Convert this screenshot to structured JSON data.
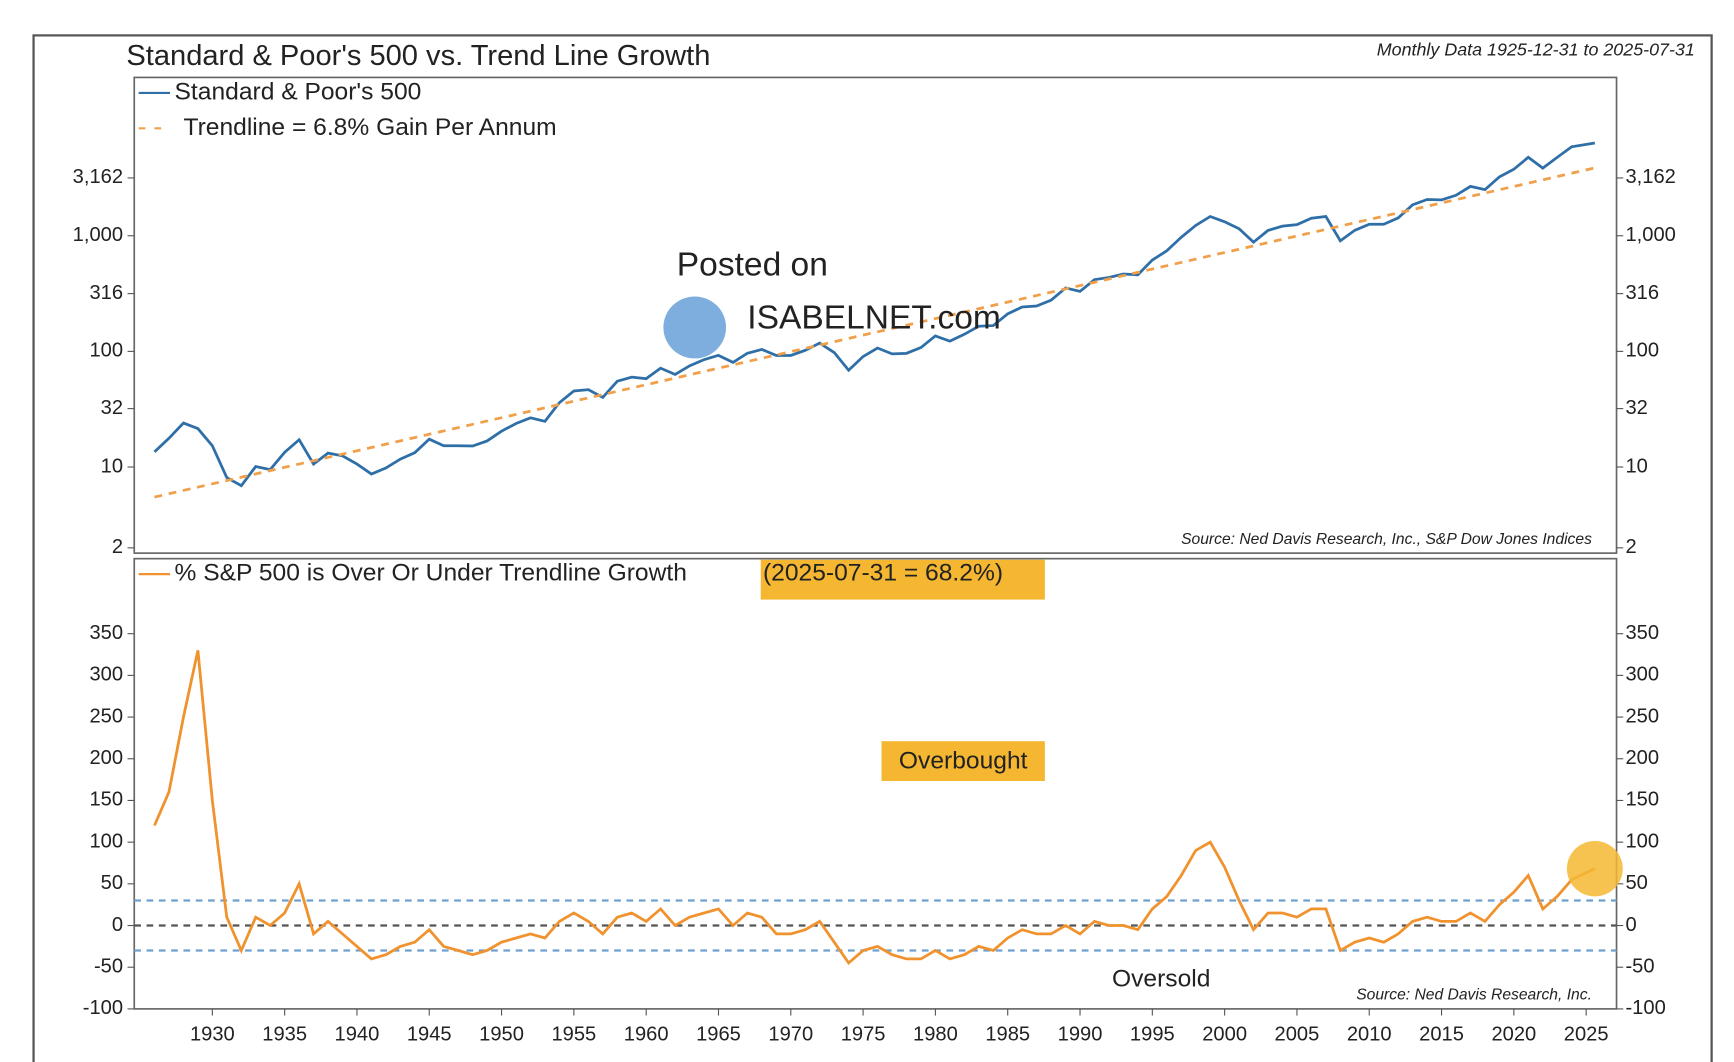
{
  "chart_data": [
    {
      "type": "line",
      "title": "Standard & Poor's 500 vs. Trend Line Growth",
      "subtitle": "Monthly Data 1925-12-31 to 2025-07-31",
      "log_scale": true,
      "xlim": [
        1924.6,
        2027.1
      ],
      "ylim": [
        1.8,
        23400
      ],
      "yticks": [
        2,
        10,
        32,
        100,
        316,
        {
          "value": 1000,
          "label": "1,000"
        },
        {
          "value": 3162,
          "label": "3,162"
        }
      ],
      "source": "Source: Ned Davis Research, Inc., S&P Dow Jones Indices",
      "watermark": [
        "Posted on",
        "ISABELNET.com"
      ],
      "series": [
        {
          "name": "Standard & Poor's 500",
          "color": "#2f6fa8",
          "style": "solid",
          "x": [
            1926,
            1927,
            1928,
            1929,
            1930,
            1931,
            1932,
            1933,
            1934,
            1935,
            1936,
            1937,
            1938,
            1939,
            1940,
            1941,
            1942,
            1943,
            1944,
            1945,
            1946,
            1947,
            1948,
            1949,
            1950,
            1951,
            1952,
            1953,
            1954,
            1955,
            1956,
            1957,
            1958,
            1959,
            1960,
            1961,
            1962,
            1963,
            1964,
            1965,
            1966,
            1967,
            1968,
            1969,
            1970,
            1971,
            1972,
            1973,
            1974,
            1975,
            1976,
            1977,
            1978,
            1979,
            1980,
            1981,
            1982,
            1983,
            1984,
            1985,
            1986,
            1987,
            1988,
            1989,
            1990,
            1991,
            1992,
            1993,
            1994,
            1995,
            1996,
            1997,
            1998,
            1999,
            2000,
            2001,
            2002,
            2003,
            2004,
            2005,
            2006,
            2007,
            2008,
            2009,
            2010,
            2011,
            2012,
            2013,
            2014,
            2015,
            2016,
            2017,
            2018,
            2019,
            2020,
            2021,
            2022,
            2023,
            2024,
            2025.6
          ],
          "values": [
            13.5,
            17.7,
            24,
            21.5,
            15.3,
            8.1,
            6.9,
            10.1,
            9.5,
            13.4,
            17.2,
            10.6,
            13.2,
            12.5,
            10.6,
            8.7,
            9.8,
            11.7,
            13.3,
            17.4,
            15.3,
            15.3,
            15.2,
            16.8,
            20.4,
            23.8,
            26.6,
            24.8,
            36,
            45.5,
            46.7,
            40,
            55.2,
            59.9,
            58.1,
            71.6,
            63.1,
            75,
            84.8,
            92.4,
            80.3,
            96.5,
            103.9,
            92.1,
            92.2,
            102,
            118,
            97.6,
            68.6,
            90.2,
            107,
            95.1,
            96.1,
            107.9,
            135.8,
            122.6,
            140.6,
            164.9,
            167.2,
            211.3,
            242.2,
            247.1,
            277.7,
            353.4,
            330.2,
            417.1,
            435.7,
            466.5,
            459.3,
            615.9,
            740.7,
            970.4,
            1229,
            1469,
            1320,
            1148,
            880,
            1112,
            1212,
            1248,
            1418,
            1468,
            903,
            1115,
            1258,
            1258,
            1426,
            1848,
            2059,
            2044,
            2239,
            2674,
            2507,
            3231,
            3756,
            4766,
            3840,
            4770,
            5882,
            6339
          ]
        },
        {
          "name": "Trendline = 6.8% Gain Per Annum",
          "color": "#f0a04b",
          "style": "dashed",
          "x": [
            1926,
            2025.6
          ],
          "values": [
            5.5,
            3860
          ]
        }
      ]
    },
    {
      "type": "line",
      "xlim": [
        1924.6,
        2027.1
      ],
      "ylim": [
        -100,
        440
      ],
      "xticks": [
        1930,
        1935,
        1940,
        1945,
        1950,
        1955,
        1960,
        1965,
        1970,
        1975,
        1980,
        1985,
        1990,
        1995,
        2000,
        2005,
        2010,
        2015,
        2020,
        2025
      ],
      "yticks": [
        -100,
        -50,
        0,
        50,
        100,
        150,
        200,
        250,
        300,
        350
      ],
      "source": "Source: Ned Davis Research, Inc.",
      "latest_label": "(2025-07-31 = 68.2%)",
      "annotations": [
        "Overbought",
        "Oversold"
      ],
      "hlines": [
        {
          "value": 30,
          "color": "#6fa0d0"
        },
        {
          "value": 0,
          "color": "#555555"
        },
        {
          "value": -30,
          "color": "#6fa0d0"
        }
      ],
      "highlight_color": "#f5b731",
      "series": [
        {
          "name": "% S&P 500 is Over Or Under Trendline Growth",
          "color": "#f0922e",
          "style": "solid",
          "x": [
            1926,
            1927,
            1928,
            1929,
            1930,
            1931,
            1932,
            1933,
            1934,
            1935,
            1936,
            1937,
            1938,
            1939,
            1940,
            1941,
            1942,
            1943,
            1944,
            1945,
            1946,
            1947,
            1948,
            1949,
            1950,
            1951,
            1952,
            1953,
            1954,
            1955,
            1956,
            1957,
            1958,
            1959,
            1960,
            1961,
            1962,
            1963,
            1964,
            1965,
            1966,
            1967,
            1968,
            1969,
            1970,
            1971,
            1972,
            1973,
            1974,
            1975,
            1976,
            1977,
            1978,
            1979,
            1980,
            1981,
            1982,
            1983,
            1984,
            1985,
            1986,
            1987,
            1988,
            1989,
            1990,
            1991,
            1992,
            1993,
            1994,
            1995,
            1996,
            1997,
            1998,
            1999,
            2000,
            2001,
            2002,
            2003,
            2004,
            2005,
            2006,
            2007,
            2008,
            2009,
            2010,
            2011,
            2012,
            2013,
            2014,
            2015,
            2016,
            2017,
            2018,
            2019,
            2020,
            2021,
            2022,
            2023,
            2024,
            2025.6
          ],
          "values": [
            120,
            160,
            250,
            330,
            150,
            10,
            -30,
            10,
            0,
            15,
            50,
            -10,
            5,
            -10,
            -25,
            -40,
            -35,
            -25,
            -20,
            -5,
            -25,
            -30,
            -35,
            -30,
            -20,
            -15,
            -10,
            -15,
            5,
            15,
            5,
            -10,
            10,
            15,
            5,
            20,
            0,
            10,
            15,
            20,
            0,
            15,
            10,
            -10,
            -10,
            -5,
            5,
            -20,
            -45,
            -30,
            -25,
            -35,
            -40,
            -40,
            -30,
            -40,
            -35,
            -25,
            -30,
            -15,
            -5,
            -10,
            -10,
            0,
            -10,
            5,
            0,
            0,
            -5,
            20,
            35,
            60,
            90,
            100,
            70,
            30,
            -5,
            15,
            15,
            10,
            20,
            20,
            -30,
            -20,
            -15,
            -20,
            -10,
            5,
            10,
            5,
            5,
            15,
            5,
            25,
            40,
            60,
            20,
            35,
            55,
            68.2
          ]
        }
      ]
    }
  ]
}
